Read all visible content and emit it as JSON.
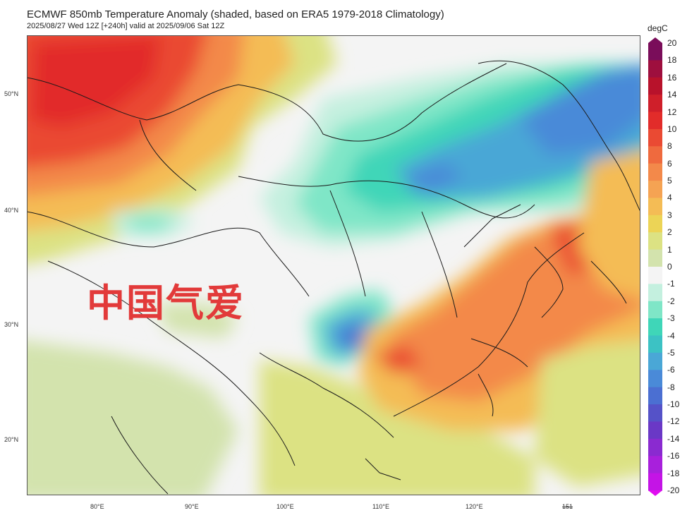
{
  "header": {
    "title": "ECMWF 850mb Temperature Anomaly (shaded, based on ERA5 1979-2018 Climatology)",
    "subtitle": "2025/08/27 Wed 12Z [+240h] valid at 2025/09/06 Sat 12Z"
  },
  "map": {
    "region": "East Asia / China",
    "lat_labels": [
      {
        "text": "50°N",
        "lat": 50
      },
      {
        "text": "40°N",
        "lat": 40
      },
      {
        "text": "30°N",
        "lat": 30
      },
      {
        "text": "20°N",
        "lat": 20
      }
    ],
    "lon_labels": [
      {
        "text": "80°E",
        "lon": 80
      },
      {
        "text": "90°E",
        "lon": 90
      },
      {
        "text": "100°E",
        "lon": 100
      },
      {
        "text": "110°E",
        "lon": 110
      },
      {
        "text": "120°E",
        "lon": 120
      },
      {
        "text": "151",
        "lon": 130,
        "struck": true
      }
    ]
  },
  "colorbar": {
    "unit": "degC",
    "levels": [
      {
        "label": "20",
        "color": "#7a0d5a"
      },
      {
        "label": "18",
        "color": "#9e0f3e"
      },
      {
        "label": "16",
        "color": "#b8122b"
      },
      {
        "label": "14",
        "color": "#cf1f2a"
      },
      {
        "label": "12",
        "color": "#e22c2a"
      },
      {
        "label": "10",
        "color": "#ea4a33"
      },
      {
        "label": "8",
        "color": "#ef6a3e"
      },
      {
        "label": "6",
        "color": "#f3894a"
      },
      {
        "label": "5",
        "color": "#f5a353"
      },
      {
        "label": "4",
        "color": "#f4bc55"
      },
      {
        "label": "3",
        "color": "#ecd456"
      },
      {
        "label": "2",
        "color": "#dce283"
      },
      {
        "label": "1",
        "color": "#d3e3ad"
      },
      {
        "label": "0",
        "color": "#f4f4f4"
      },
      {
        "label": "-1",
        "color": "#c4f0df"
      },
      {
        "label": "-2",
        "color": "#7fe6c7"
      },
      {
        "label": "-3",
        "color": "#3fd6b8"
      },
      {
        "label": "-4",
        "color": "#3cc2c4"
      },
      {
        "label": "-5",
        "color": "#4aa7d6"
      },
      {
        "label": "-6",
        "color": "#4a8ad8"
      },
      {
        "label": "-8",
        "color": "#4b6fd2"
      },
      {
        "label": "-10",
        "color": "#5552c8"
      },
      {
        "label": "-12",
        "color": "#6a38c6"
      },
      {
        "label": "-14",
        "color": "#8a2ad0"
      },
      {
        "label": "-16",
        "color": "#a820dc"
      },
      {
        "label": "-18",
        "color": "#c414e6"
      },
      {
        "label": "-20",
        "color": "#e00cf0"
      }
    ]
  },
  "watermark": {
    "text": "中国气爱"
  }
}
